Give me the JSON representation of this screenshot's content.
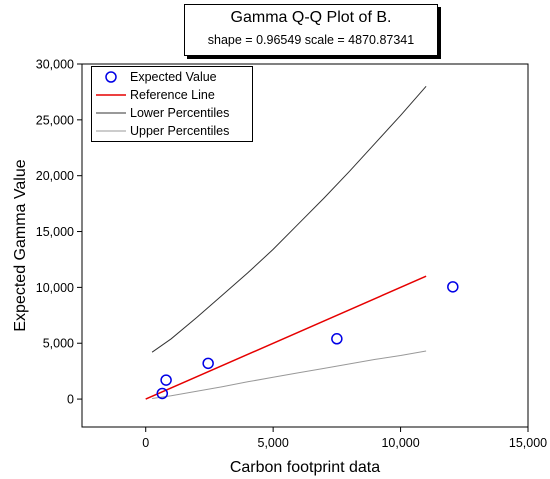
{
  "title": {
    "main": "Gamma Q-Q Plot of B.",
    "sub": "shape = 0.96549  scale = 4870.87341"
  },
  "legend": [
    {
      "label": "Expected Value",
      "kind": "marker",
      "color": "#0000e6"
    },
    {
      "label": "Reference Line",
      "kind": "line",
      "color": "#e60000"
    },
    {
      "label": "Lower Percentiles",
      "kind": "line",
      "color": "#333333"
    },
    {
      "label": "Upper Percentiles",
      "kind": "line",
      "color": "#999999"
    }
  ],
  "chart_data": {
    "type": "scatter",
    "xlabel": "Carbon footprint data",
    "ylabel": "Expected Gamma Value",
    "xlim": [
      -2500,
      15000
    ],
    "ylim": [
      -2500,
      30000
    ],
    "xticks": [
      0,
      5000,
      10000,
      15000
    ],
    "yticks": [
      0,
      5000,
      10000,
      15000,
      20000,
      25000,
      30000
    ],
    "xtick_labels": [
      "0",
      "5,000",
      "10,000",
      "15,000"
    ],
    "ytick_labels": [
      "0",
      "5,000",
      "10,000",
      "15,000",
      "20,000",
      "25,000",
      "30,000"
    ],
    "series": [
      {
        "name": "Expected Value",
        "kind": "points",
        "color": "#0000e6",
        "x": [
          650,
          800,
          2450,
          7500,
          12050
        ],
        "y": [
          500,
          1700,
          3200,
          5400,
          10050
        ]
      },
      {
        "name": "Reference Line",
        "kind": "line",
        "color": "#e60000",
        "x": [
          0,
          11000
        ],
        "y": [
          0,
          11000
        ]
      },
      {
        "name": "Lower Percentiles",
        "kind": "line",
        "color": "#333333",
        "x": [
          250,
          1000,
          2000,
          3000,
          4000,
          5000,
          6000,
          7000,
          8000,
          9000,
          10000,
          11000
        ],
        "y": [
          4200,
          5400,
          7300,
          9300,
          11300,
          13400,
          15700,
          18000,
          20400,
          22900,
          25400,
          28000
        ]
      },
      {
        "name": "Upper Percentiles",
        "kind": "line",
        "color": "#999999",
        "x": [
          250,
          1000,
          2000,
          3000,
          4000,
          5000,
          6000,
          7000,
          8000,
          9000,
          10000,
          11000
        ],
        "y": [
          50,
          300,
          700,
          1100,
          1550,
          1950,
          2350,
          2750,
          3150,
          3550,
          3900,
          4300
        ]
      }
    ]
  }
}
